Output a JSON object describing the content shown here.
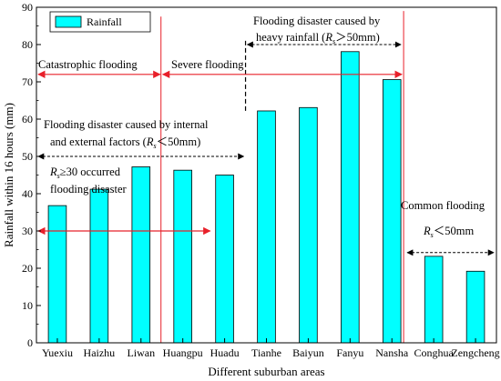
{
  "chart_data": {
    "type": "bar",
    "xlabel": "Different suburban areas",
    "ylabel": "Rainfall within 16 hours (mm)",
    "ylim": [
      0,
      90
    ],
    "yticks": [
      0,
      10,
      20,
      30,
      40,
      50,
      60,
      70,
      80,
      90
    ],
    "legend": {
      "label": "Rainfall",
      "placement": "top-left"
    },
    "categories": [
      "Yuexiu",
      "Haizhu",
      "Liwan",
      "Huangpu",
      "Huadu",
      "Tianhe",
      "Baiyun",
      "Fanyu",
      "Nansha",
      "Conghua",
      "Zengcheng"
    ],
    "values": [
      36.8,
      41.2,
      47.2,
      46.3,
      45.0,
      62.2,
      63.1,
      78.1,
      70.6,
      23.2,
      19.2
    ],
    "bar_color": "#00ffff",
    "annotations": {
      "catastrophic": "Catastrophic flooding",
      "severe": "Severe flooding",
      "heavy_line1": "Flooding disaster caused by",
      "heavy_line2_prefix": "heavy rainfall (",
      "heavy_line2_suffix": "＞50mm)",
      "internal_line1": "Flooding disaster caused by internal",
      "internal_line2_prefix": "and external factors (",
      "internal_line2_suffix": "＜50mm)",
      "rs30_suffix": "≥30 occurred",
      "rs30_line2": "flooding disaster",
      "common": "Common flooding",
      "common_suffix": "＜50mm",
      "rs_symbol": "R",
      "rs_sub": "s"
    },
    "colors": {
      "red": "#e8202a",
      "black": "#000000"
    }
  }
}
